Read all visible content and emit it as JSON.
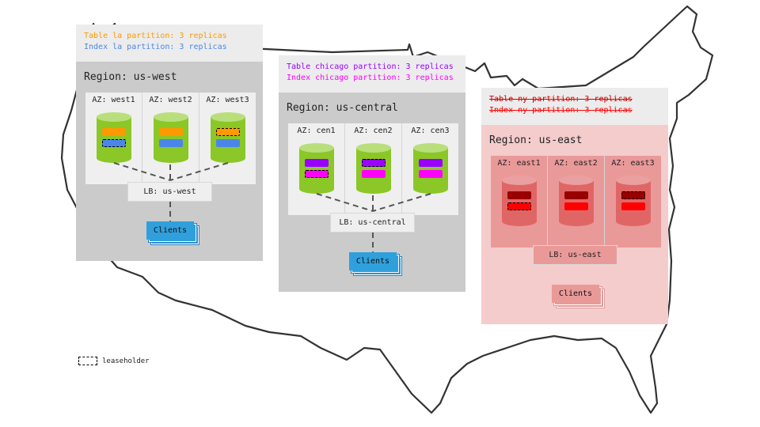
{
  "regions": [
    {
      "id": "west",
      "header_lines": [
        {
          "text": "Table la partition: 3 replicas",
          "color": "#ff9900",
          "strike": false
        },
        {
          "text": "Index la partition: 3 replicas",
          "color": "#4a86e8",
          "strike": false
        }
      ],
      "title": "Region: us-west",
      "azs": [
        {
          "label": "AZ: west1",
          "leaseholder": "index"
        },
        {
          "label": "AZ: west2",
          "leaseholder": null
        },
        {
          "label": "AZ: west3",
          "leaseholder": "table"
        }
      ],
      "lb": "LB: us-west",
      "clients": "Clients",
      "colors": {
        "region_bg": "#cbcbcb",
        "az_bg": "#efefef",
        "lb_bg": "#efefef",
        "cyl_body": "#8bc727",
        "cyl_top": "#b9df7c",
        "table_bar": "#ff9900",
        "index_bar": "#4a86e8",
        "clients_bg": "#2fa0dc",
        "clients_border": "#2b7fc4"
      }
    },
    {
      "id": "central",
      "header_lines": [
        {
          "text": "Table chicago partition: 3 replicas",
          "color": "#9900ff",
          "strike": false
        },
        {
          "text": "Index chicago partition: 3 replicas",
          "color": "#ff00ff",
          "strike": false
        }
      ],
      "title": "Region: us-central",
      "azs": [
        {
          "label": "AZ: cen1",
          "leaseholder": "index"
        },
        {
          "label": "AZ: cen2",
          "leaseholder": "table"
        },
        {
          "label": "AZ: cen3",
          "leaseholder": null
        }
      ],
      "lb": "LB: us-central",
      "clients": "Clients",
      "colors": {
        "region_bg": "#cbcbcb",
        "az_bg": "#efefef",
        "lb_bg": "#efefef",
        "cyl_body": "#8bc727",
        "cyl_top": "#b9df7c",
        "table_bar": "#9900ff",
        "index_bar": "#ff00ff",
        "clients_bg": "#2fa0dc",
        "clients_border": "#2b7fc4"
      }
    },
    {
      "id": "east",
      "header_lines": [
        {
          "text": "Table ny partition: 3 replicas",
          "color": "#cc0000",
          "strike": true
        },
        {
          "text": "Index ny partition: 3 replicas",
          "color": "#ff0000",
          "strike": true
        }
      ],
      "title": "Region: us-east",
      "azs": [
        {
          "label": "AZ: east1",
          "leaseholder": "index"
        },
        {
          "label": "AZ: east2",
          "leaseholder": null
        },
        {
          "label": "AZ: east3",
          "leaseholder": "table"
        }
      ],
      "lb": "LB: us-east",
      "clients": "Clients",
      "colors": {
        "region_bg": "#f4cccc",
        "az_bg": "#ea9999",
        "lb_bg": "#ea9999",
        "cyl_body": "#e06666",
        "cyl_top": "#eaa0a0",
        "table_bar": "#990000",
        "index_bar": "#ff0000",
        "clients_bg": "#ea9999",
        "clients_border": "#d5a0a0"
      }
    }
  ],
  "legend": {
    "label": "leaseholder"
  }
}
